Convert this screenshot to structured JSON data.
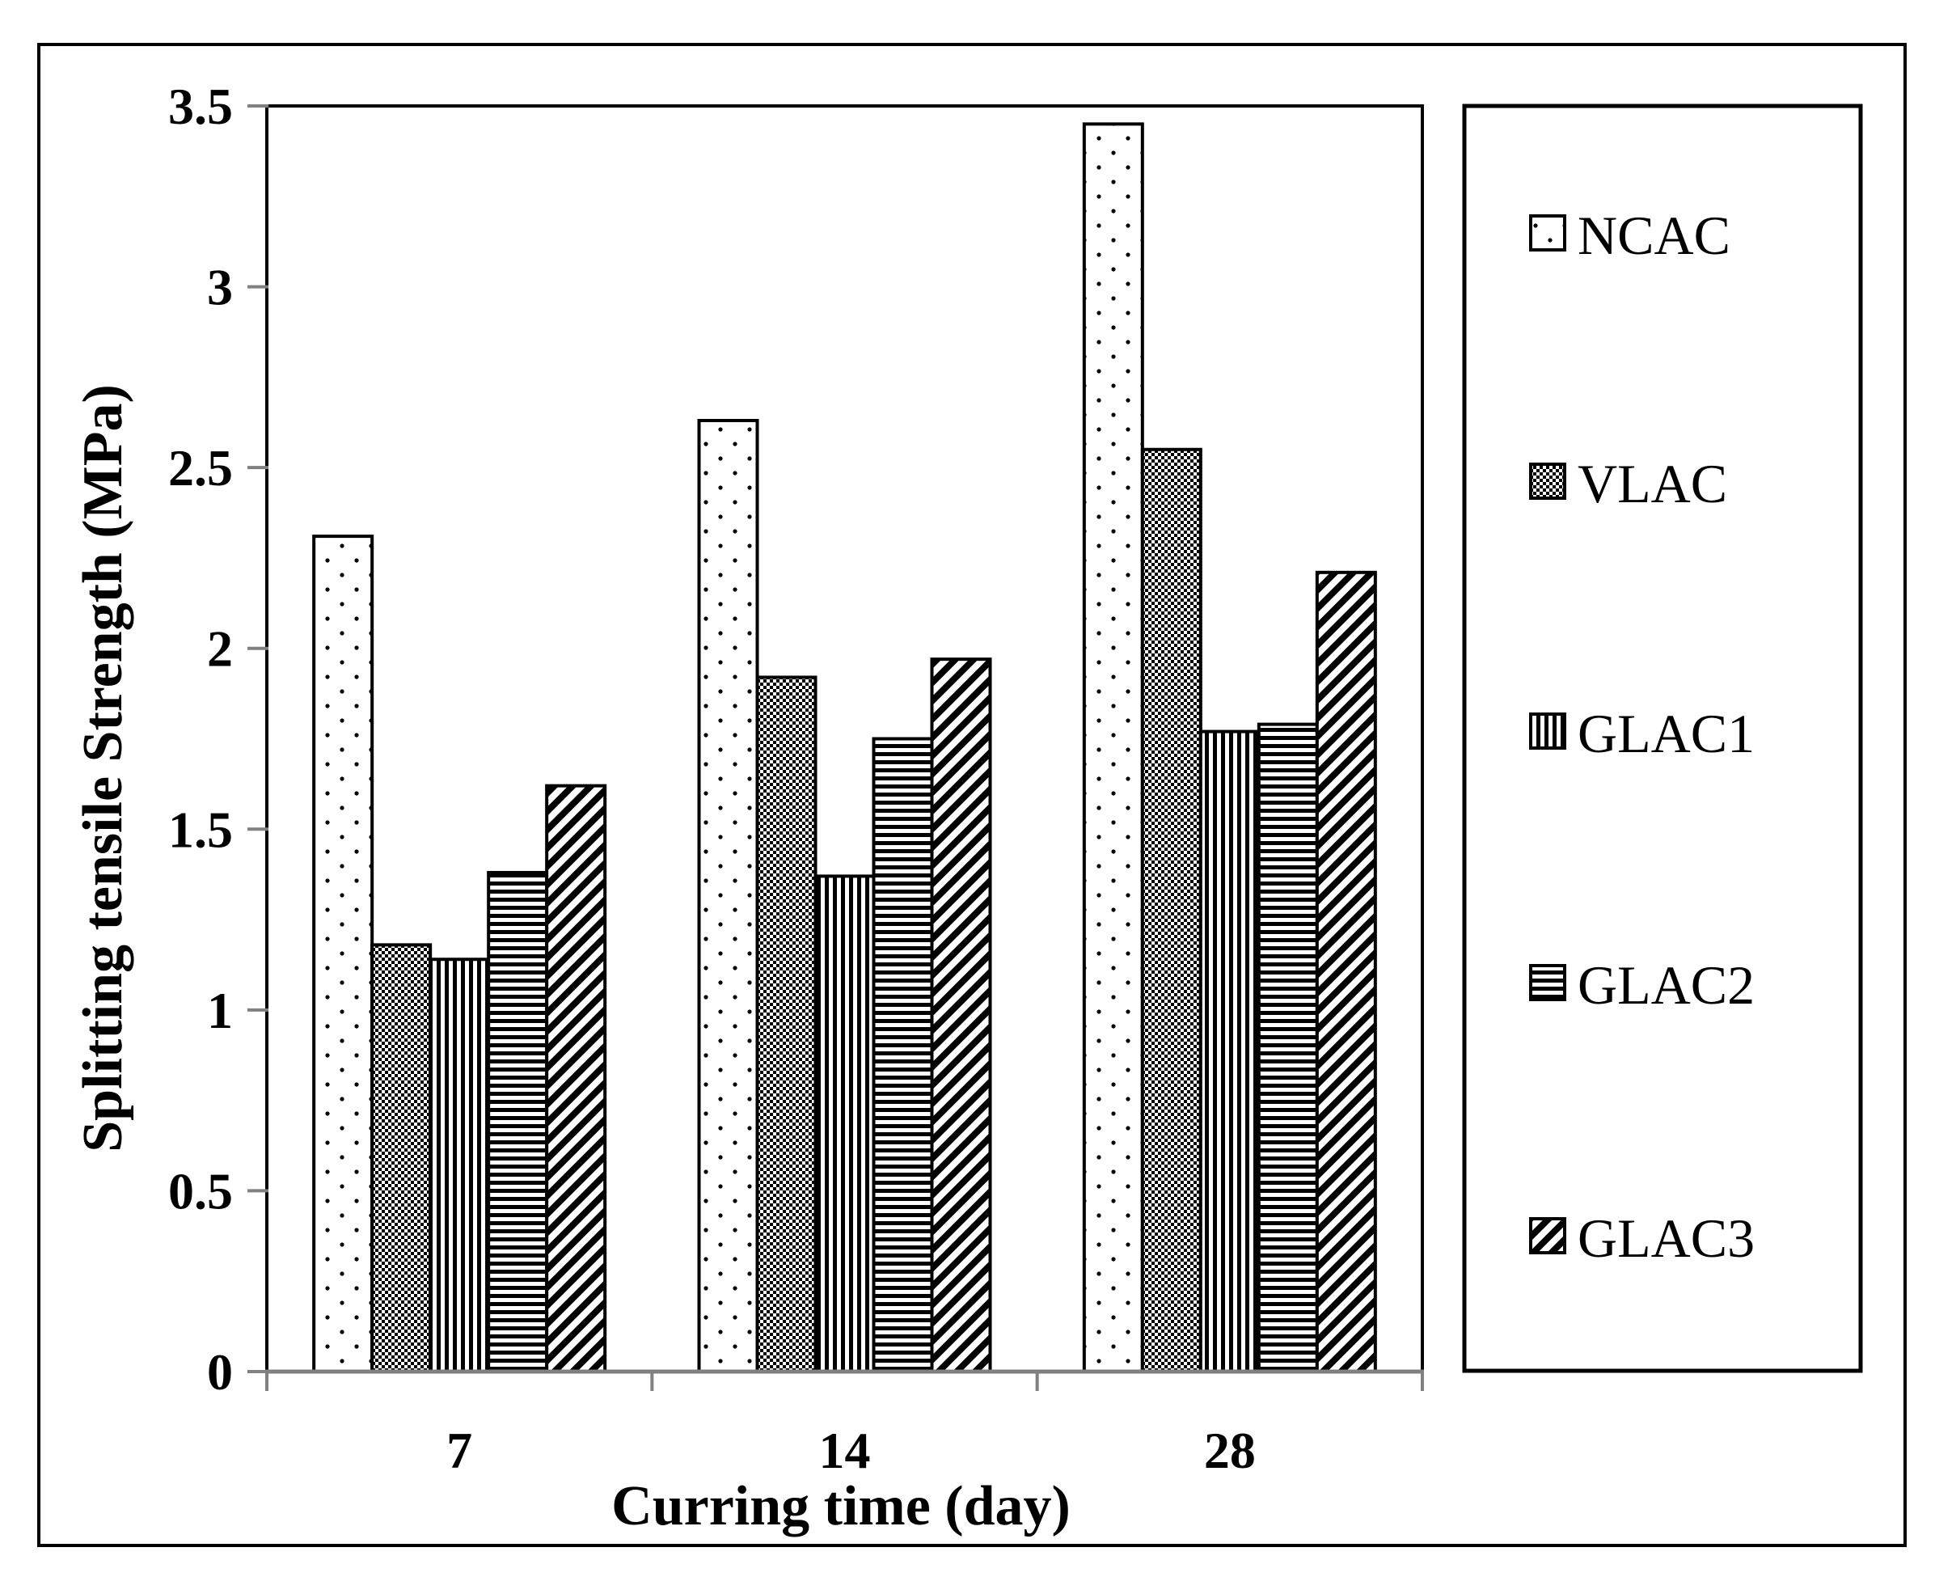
{
  "chart_data": {
    "type": "bar",
    "title": "",
    "xlabel": "Curring time (day)",
    "ylabel": "Splitting tensile Strength (MPa)",
    "ylim": [
      0,
      3.5
    ],
    "yticks": [
      "0",
      "0.5",
      "1",
      "1.5",
      "2",
      "2.5",
      "3",
      "3.5"
    ],
    "categories": [
      "7",
      "14",
      "28"
    ],
    "grid": false,
    "legend_position": "right",
    "series": [
      {
        "name": "NCAC",
        "pattern": "dots",
        "values": [
          2.31,
          2.63,
          3.45
        ]
      },
      {
        "name": "VLAC",
        "pattern": "checker",
        "values": [
          1.18,
          1.92,
          2.55
        ]
      },
      {
        "name": "GLAC1",
        "pattern": "vertical",
        "values": [
          1.14,
          1.37,
          1.77
        ]
      },
      {
        "name": "GLAC2",
        "pattern": "horizontal",
        "values": [
          1.38,
          1.75,
          1.79
        ]
      },
      {
        "name": "GLAC3",
        "pattern": "diagonal",
        "values": [
          1.62,
          1.97,
          2.21
        ]
      }
    ]
  },
  "colors": {
    "ink": "#000000",
    "background": "#ffffff",
    "axis": "#808080"
  }
}
